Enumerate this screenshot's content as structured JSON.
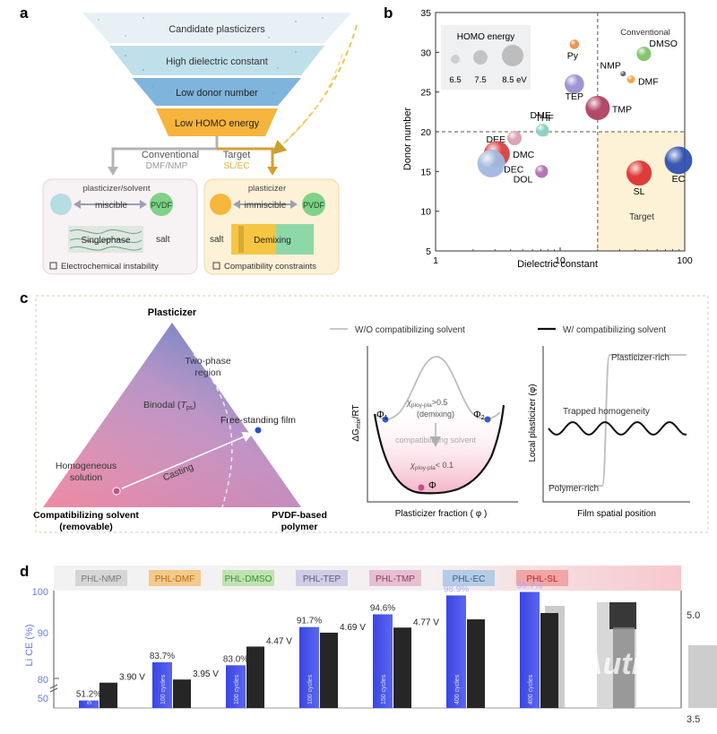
{
  "panel_a": {
    "letter": "a",
    "funnel": [
      "Candidate plasticizers",
      "High dielectric constant",
      "Low donor number",
      "Low HOMO energy"
    ],
    "branch_left": {
      "title": "Conventional",
      "sub": "DMF/NMP"
    },
    "branch_right": {
      "title": "Target",
      "sub": "SL/EC"
    },
    "box_left": {
      "solvent": "plasticizer/solvent",
      "relation": "miscible",
      "polymer": "PVDF",
      "phase": "Singlephase",
      "salt": "salt",
      "caption": "Electrochemical instability"
    },
    "box_right": {
      "solvent": "plasticizer",
      "relation": "immiscible",
      "polymer": "PVDF",
      "salt": "salt",
      "phase": "Demixing",
      "caption": "Compatibility constraints"
    }
  },
  "panel_b": {
    "letter": "b",
    "chart_data": {
      "type": "scatter",
      "xlabel": "Dielectric constant",
      "ylabel": "Donor number",
      "x_scale": "log",
      "xlim": [
        1,
        100
      ],
      "ylim": [
        5,
        35
      ],
      "x_ticks": [
        1,
        10,
        100
      ],
      "y_ticks": [
        5,
        10,
        15,
        20,
        25,
        30,
        35
      ],
      "divider_x": 20,
      "divider_y": 20,
      "quadrant_labels": {
        "top_right": "Conventional",
        "bottom_right": "Target"
      },
      "legend": {
        "title": "HOMO energy",
        "entries": [
          "6.5",
          "7.5",
          "8.5 eV"
        ],
        "placement": "top-left"
      },
      "points": [
        {
          "label": "Py",
          "x": 13,
          "y": 31,
          "homo": 7.0,
          "color": "#e8914a"
        },
        {
          "label": "TEP",
          "x": 13,
          "y": 26,
          "homo": 8.2,
          "color": "#9a8fcf"
        },
        {
          "label": "TMP",
          "x": 20,
          "y": 23,
          "homo": 8.8,
          "color": "#b04060"
        },
        {
          "label": "NMP",
          "x": 32,
          "y": 27.3,
          "homo": 6.5,
          "color": "#606060"
        },
        {
          "label": "DMSO",
          "x": 47,
          "y": 29.8,
          "homo": 7.6,
          "color": "#7fc26a"
        },
        {
          "label": "DMF",
          "x": 37,
          "y": 26.6,
          "homo": 6.8,
          "color": "#f0a040"
        },
        {
          "label": "THF",
          "x": 7.5,
          "y": 20,
          "homo": 7.0,
          "color": "#c9e07a"
        },
        {
          "label": "DME",
          "x": 7.2,
          "y": 20.2,
          "homo": 7.4,
          "color": "#8ad0c8"
        },
        {
          "label": "DEE",
          "x": 4.3,
          "y": 19.2,
          "homo": 7.6,
          "color": "#d8a0b0"
        },
        {
          "label": "DMC",
          "x": 3.1,
          "y": 17.2,
          "homo": 9.0,
          "color": "#d94040"
        },
        {
          "label": "DEC",
          "x": 2.8,
          "y": 16.0,
          "homo": 9.2,
          "color": "#a0b8e0"
        },
        {
          "label": "DOL",
          "x": 7.1,
          "y": 15.0,
          "homo": 7.4,
          "color": "#b070b0"
        },
        {
          "label": "SL",
          "x": 43,
          "y": 14.8,
          "homo": 8.9,
          "color": "#dd3030"
        },
        {
          "label": "EC",
          "x": 89,
          "y": 16.4,
          "homo": 9.2,
          "color": "#3050b0"
        }
      ]
    }
  },
  "panel_c": {
    "letter": "c",
    "ternary": {
      "top": "Plasticizer",
      "left_line1": "Compatibilizing solvent",
      "left_line2": "(removable)",
      "right_line1": "PVDF-based",
      "right_line2": "polymer",
      "two_phase_line1": "Two-phase",
      "two_phase_line2": "region",
      "binodal": "Binodal (",
      "binodal_sym": "T",
      "binodal_sub": "ps",
      "binodal_end": ")",
      "film": "Free-standing film",
      "homogeneous_line1": "Homogeneous",
      "homogeneous_line2": "solution",
      "casting": "Casting"
    },
    "energy": {
      "legend": "W/O compatibilizing solvent",
      "ylabel_main": "ΔG",
      "ylabel_sub": "mix",
      "ylabel_end": "/RT",
      "xlabel": "Plasticizer fraction ( φ )",
      "chi_high": "χ",
      "chi_high_sub": "ploy-pla",
      "chi_high_rest": ">0.5",
      "demixing": "(demixing)",
      "arrow_label": "compatibilizing solvent",
      "chi_low": "χ",
      "chi_low_sub": "ploy-pla",
      "chi_low_rest": "< 0.1",
      "phi_left": "Φ",
      "phi_left_sub": "1",
      "phi_right": "Φ",
      "phi_right_sub": "2",
      "phi_mid": "Φ"
    },
    "profile": {
      "legend": "W/ compatibilizing solvent",
      "ylabel": "Local plasticizer (φ)",
      "xlabel": "Film spatial position",
      "top_label": "Plasticizer-rich",
      "mid_label": "Trapped homogeneity",
      "bottom_label": "Polymer-rich"
    }
  },
  "panel_d": {
    "letter": "d",
    "ylabel": "Li CE (%)",
    "y_ticks": [
      "100",
      "90",
      "80",
      "50"
    ],
    "right_ticks": [
      "5.0",
      "3.5"
    ],
    "watermark": "Autiva",
    "chart_data": {
      "type": "bar",
      "categories": [
        "PHL-NMP",
        "PHL-DMF",
        "PHL-DMSO",
        "PHL-TEP",
        "PHL-TMP",
        "PHL-EC",
        "PHL-SL"
      ],
      "series": [
        {
          "values": [
            51.2,
            83.7,
            83.0,
            91.7,
            94.6,
            98.9,
            99.7
          ],
          "labels": [
            "51.2%",
            "83.7%",
            "83.0%",
            "91.7%",
            "94.6%",
            "98.9%",
            "99.7%"
          ]
        },
        {
          "values": [
            3.9,
            3.95,
            4.47,
            4.69,
            4.77,
            4.9,
            5.0
          ],
          "labels": [
            "3.90 V",
            "3.95 V",
            "4.47 V",
            "4.69 V",
            "4.77 V",
            "",
            ""
          ]
        }
      ],
      "cycle_labels": [
        "50 cyc",
        "100 cycles",
        "100 cycles",
        "100 cycles",
        "150 cycles",
        "400 cycles",
        "400 cycles"
      ],
      "tab_colors": [
        "#d6d6d6",
        "#f3c98c",
        "#bfe3b0",
        "#cfcde6",
        "#e6bfd2",
        "#b4cce6",
        "#f0a6a6"
      ],
      "tab_text_colors": [
        "#777777",
        "#b86a10",
        "#3d8a3d",
        "#555577",
        "#8a3a60",
        "#3a5a90",
        "#c02020"
      ]
    }
  }
}
